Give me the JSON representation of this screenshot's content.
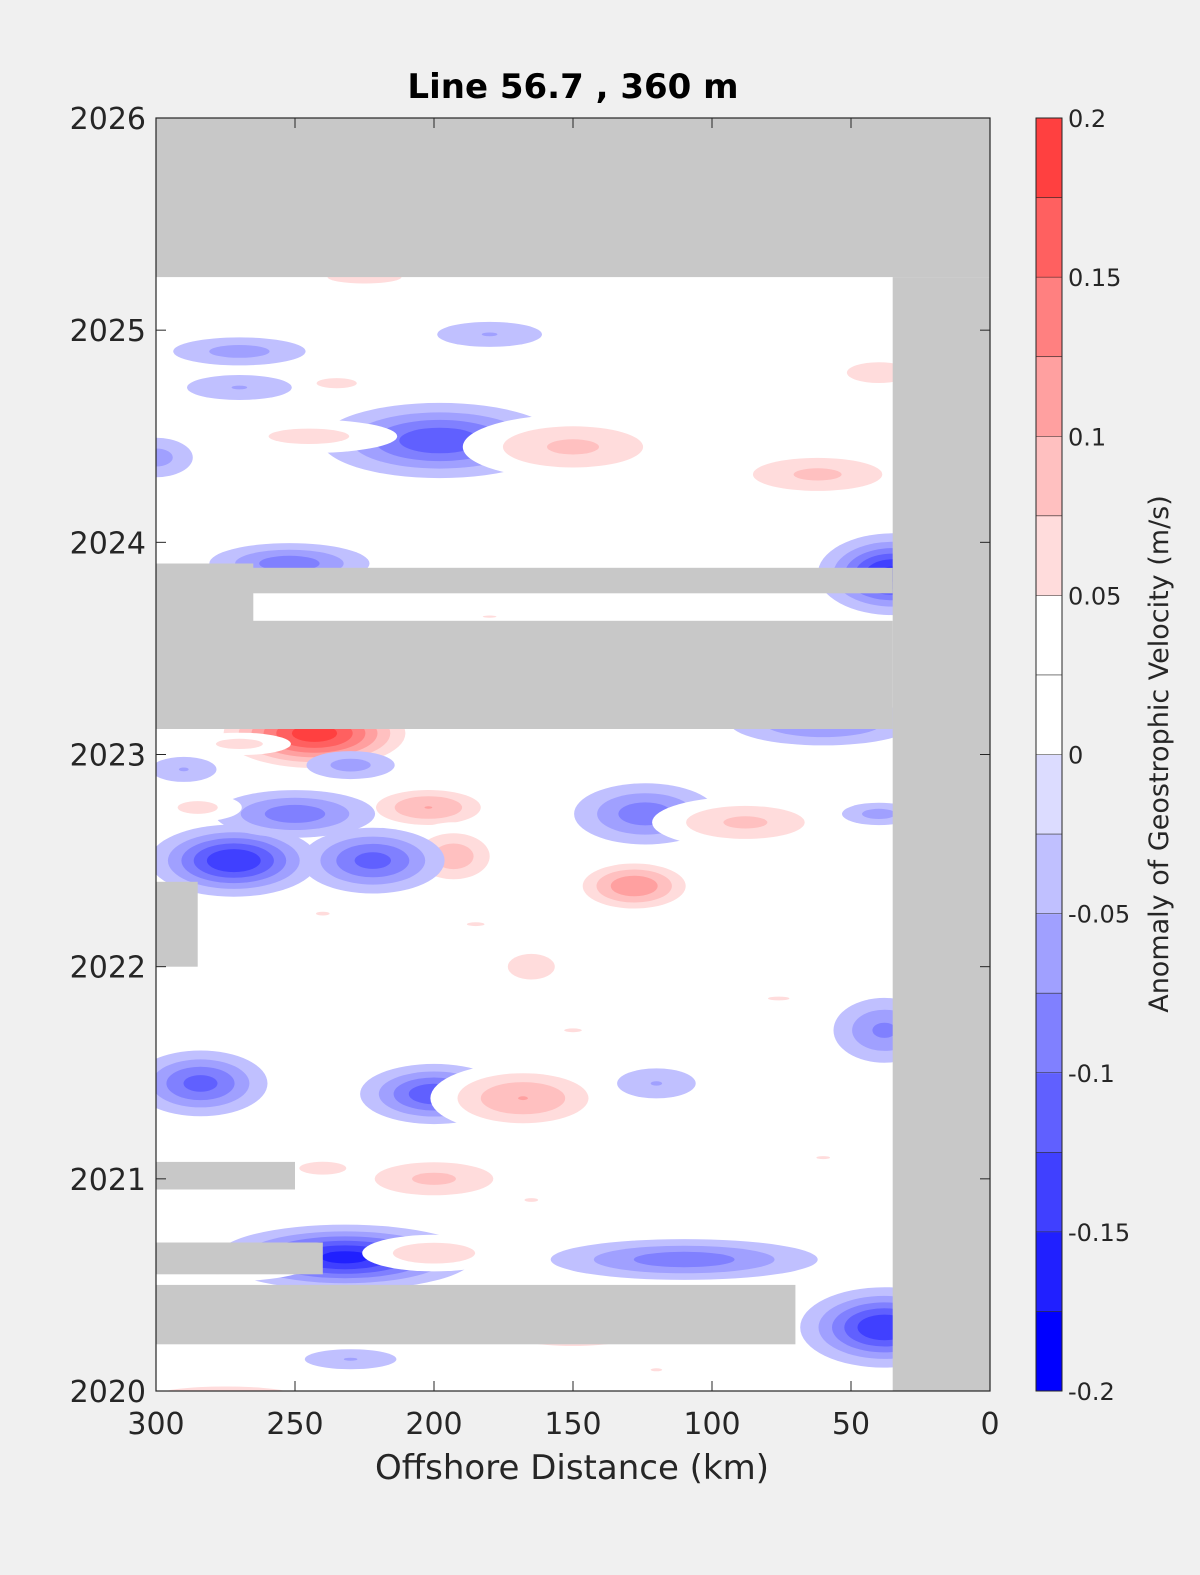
{
  "chart_data": {
    "type": "heatmap",
    "title": "Line 56.7 , 360 m",
    "xlabel": "Offshore Distance (km)",
    "ylabel": "",
    "xlim": [
      300,
      0
    ],
    "ylim": [
      2020,
      2026
    ],
    "x_reversed": true,
    "x_ticks": [
      "300",
      "250",
      "200",
      "150",
      "100",
      "50",
      "0"
    ],
    "x_tick_values": [
      300,
      250,
      200,
      150,
      100,
      50,
      0
    ],
    "y_ticks": [
      "2020",
      "2021",
      "2022",
      "2023",
      "2024",
      "2025",
      "2026"
    ],
    "y_tick_values": [
      2020,
      2021,
      2022,
      2023,
      2024,
      2025,
      2026
    ],
    "colorbar": {
      "label": "Anomaly of Geostrophic Velocity (m/s)",
      "range": [
        -0.2,
        0.2
      ],
      "tick_labels": [
        "0.2",
        "0.15",
        "0.1",
        "0.05",
        "0",
        "-0.05",
        "-0.1",
        "-0.15",
        "-0.2"
      ],
      "tick_values": [
        0.2,
        0.15,
        0.1,
        0.05,
        0,
        -0.05,
        -0.1,
        -0.15,
        -0.2
      ],
      "levels": [
        -0.2,
        -0.175,
        -0.15,
        -0.125,
        -0.1,
        -0.075,
        -0.05,
        -0.025,
        0,
        0.025,
        0.05,
        0.075,
        0.1,
        0.125,
        0.15,
        0.175,
        0.2
      ],
      "colors": [
        "#0000ff",
        "#2020ff",
        "#4040ff",
        "#6060ff",
        "#8080ff",
        "#a0a0ff",
        "#c0c0ff",
        "#dcdcff",
        "#ffffff",
        "#ffffff",
        "#ffdcdc",
        "#ffc0c0",
        "#ffa0a0",
        "#ff8080",
        "#ff6060",
        "#ff4040",
        "#ff2020",
        "#ff0000"
      ]
    },
    "nodata_color": "#c8c8c8",
    "data_coverage": {
      "x_range": [
        300,
        35
      ],
      "y_range": [
        2019.95,
        2025.25
      ]
    },
    "nodata_regions": [
      {
        "x": [
          300,
          0
        ],
        "y": [
          2025.25,
          2026
        ]
      },
      {
        "x": [
          35,
          0
        ],
        "y": [
          2019.95,
          2025.25
        ]
      },
      {
        "x": [
          300,
          35
        ],
        "y": [
          2023.12,
          2023.63
        ]
      },
      {
        "x": [
          300,
          35
        ],
        "y": [
          2023.76,
          2023.88
        ]
      },
      {
        "x": [
          300,
          265
        ],
        "y": [
          2023.6,
          2023.9
        ]
      },
      {
        "x": [
          300,
          285
        ],
        "y": [
          2022.0,
          2022.4
        ]
      },
      {
        "x": [
          300,
          250
        ],
        "y": [
          2020.95,
          2021.08
        ]
      },
      {
        "x": [
          300,
          240
        ],
        "y": [
          2020.55,
          2020.7
        ]
      },
      {
        "x": [
          300,
          70
        ],
        "y": [
          2020.22,
          2020.5
        ]
      }
    ],
    "anomalies": [
      {
        "x": 243,
        "y": 2023.1,
        "sx": 20,
        "sy": 0.1,
        "v": 0.19
      },
      {
        "x": 272,
        "y": 2022.5,
        "sx": 16,
        "sy": 0.09,
        "v": -0.15
      },
      {
        "x": 232,
        "y": 2020.63,
        "sx": 24,
        "sy": 0.08,
        "v": -0.16
      },
      {
        "x": 198,
        "y": 2024.48,
        "sx": 24,
        "sy": 0.1,
        "v": -0.12
      },
      {
        "x": 35,
        "y": 2023.85,
        "sx": 14,
        "sy": 0.1,
        "v": -0.16
      },
      {
        "x": 38,
        "y": 2020.3,
        "sx": 16,
        "sy": 0.1,
        "v": -0.15
      },
      {
        "x": 200,
        "y": 2021.4,
        "sx": 15,
        "sy": 0.08,
        "v": -0.12
      },
      {
        "x": 284,
        "y": 2021.45,
        "sx": 14,
        "sy": 0.09,
        "v": -0.11
      },
      {
        "x": 168,
        "y": 2021.38,
        "sx": 20,
        "sy": 0.1,
        "v": 0.1
      },
      {
        "x": 128,
        "y": 2022.38,
        "sx": 14,
        "sy": 0.08,
        "v": 0.12
      },
      {
        "x": 202,
        "y": 2022.75,
        "sx": 16,
        "sy": 0.07,
        "v": 0.1
      },
      {
        "x": 193,
        "y": 2022.52,
        "sx": 12,
        "sy": 0.1,
        "v": 0.09
      },
      {
        "x": 222,
        "y": 2022.5,
        "sx": 15,
        "sy": 0.09,
        "v": -0.11
      },
      {
        "x": 250,
        "y": 2022.72,
        "sx": 18,
        "sy": 0.07,
        "v": -0.09
      },
      {
        "x": 124,
        "y": 2022.72,
        "sx": 16,
        "sy": 0.09,
        "v": -0.09
      },
      {
        "x": 88,
        "y": 2022.68,
        "sx": 22,
        "sy": 0.08,
        "v": 0.08
      },
      {
        "x": 150,
        "y": 2024.45,
        "sx": 26,
        "sy": 0.1,
        "v": 0.08
      },
      {
        "x": 62,
        "y": 2024.32,
        "sx": 24,
        "sy": 0.08,
        "v": 0.08
      },
      {
        "x": 110,
        "y": 2020.62,
        "sx": 30,
        "sy": 0.06,
        "v": -0.09
      },
      {
        "x": 200,
        "y": 2021.0,
        "sx": 22,
        "sy": 0.08,
        "v": 0.08
      },
      {
        "x": 150,
        "y": 2020.28,
        "sx": 26,
        "sy": 0.07,
        "v": 0.08
      },
      {
        "x": 200,
        "y": 2020.65,
        "sx": 18,
        "sy": 0.06,
        "v": 0.07
      },
      {
        "x": 60,
        "y": 2023.15,
        "sx": 22,
        "sy": 0.07,
        "v": -0.08
      },
      {
        "x": 278,
        "y": 2020.6,
        "sx": 24,
        "sy": 0.06,
        "v": 0.07
      },
      {
        "x": 275,
        "y": 2019.98,
        "sx": 30,
        "sy": 0.05,
        "v": 0.07
      },
      {
        "x": 270,
        "y": 2024.9,
        "sx": 18,
        "sy": 0.05,
        "v": -0.06
      },
      {
        "x": 180,
        "y": 2024.98,
        "sx": 16,
        "sy": 0.05,
        "v": -0.05
      },
      {
        "x": 40,
        "y": 2024.8,
        "sx": 14,
        "sy": 0.06,
        "v": 0.07
      },
      {
        "x": 245,
        "y": 2024.5,
        "sx": 24,
        "sy": 0.06,
        "v": 0.06
      },
      {
        "x": 270,
        "y": 2024.73,
        "sx": 16,
        "sy": 0.05,
        "v": -0.05
      },
      {
        "x": 225,
        "y": 2025.25,
        "sx": 22,
        "sy": 0.05,
        "v": 0.06
      },
      {
        "x": 235,
        "y": 2024.75,
        "sx": 12,
        "sy": 0.04,
        "v": 0.06
      },
      {
        "x": 300,
        "y": 2024.4,
        "sx": 10,
        "sy": 0.07,
        "v": -0.06
      },
      {
        "x": 252,
        "y": 2023.9,
        "sx": 18,
        "sy": 0.06,
        "v": -0.09
      },
      {
        "x": 38,
        "y": 2021.7,
        "sx": 12,
        "sy": 0.1,
        "v": -0.08
      },
      {
        "x": 150,
        "y": 2021.7,
        "sx": 18,
        "sy": 0.05,
        "v": 0.05
      },
      {
        "x": 76,
        "y": 2021.85,
        "sx": 22,
        "sy": 0.05,
        "v": 0.05
      },
      {
        "x": 240,
        "y": 2022.25,
        "sx": 14,
        "sy": 0.05,
        "v": 0.05
      },
      {
        "x": 185,
        "y": 2022.2,
        "sx": 18,
        "sy": 0.05,
        "v": 0.05
      },
      {
        "x": 165,
        "y": 2022.0,
        "sx": 14,
        "sy": 0.1,
        "v": 0.06
      },
      {
        "x": 120,
        "y": 2021.45,
        "sx": 12,
        "sy": 0.06,
        "v": -0.05
      },
      {
        "x": 240,
        "y": 2021.05,
        "sx": 14,
        "sy": 0.05,
        "v": 0.06
      },
      {
        "x": 165,
        "y": 2020.9,
        "sx": 14,
        "sy": 0.05,
        "v": 0.05
      },
      {
        "x": 285,
        "y": 2022.75,
        "sx": 12,
        "sy": 0.05,
        "v": 0.06
      },
      {
        "x": 290,
        "y": 2022.93,
        "sx": 10,
        "sy": 0.05,
        "v": -0.05
      },
      {
        "x": 270,
        "y": 2023.05,
        "sx": 14,
        "sy": 0.04,
        "v": 0.06
      },
      {
        "x": 230,
        "y": 2022.95,
        "sx": 12,
        "sy": 0.05,
        "v": -0.06
      },
      {
        "x": 40,
        "y": 2022.72,
        "sx": 10,
        "sy": 0.04,
        "v": -0.06
      },
      {
        "x": 60,
        "y": 2021.1,
        "sx": 14,
        "sy": 0.04,
        "v": 0.05
      },
      {
        "x": 120,
        "y": 2020.1,
        "sx": 12,
        "sy": 0.04,
        "v": 0.05
      },
      {
        "x": 230,
        "y": 2020.15,
        "sx": 14,
        "sy": 0.04,
        "v": -0.05
      },
      {
        "x": 180,
        "y": 2023.65,
        "sx": 14,
        "sy": 0.03,
        "v": 0.05
      }
    ]
  }
}
